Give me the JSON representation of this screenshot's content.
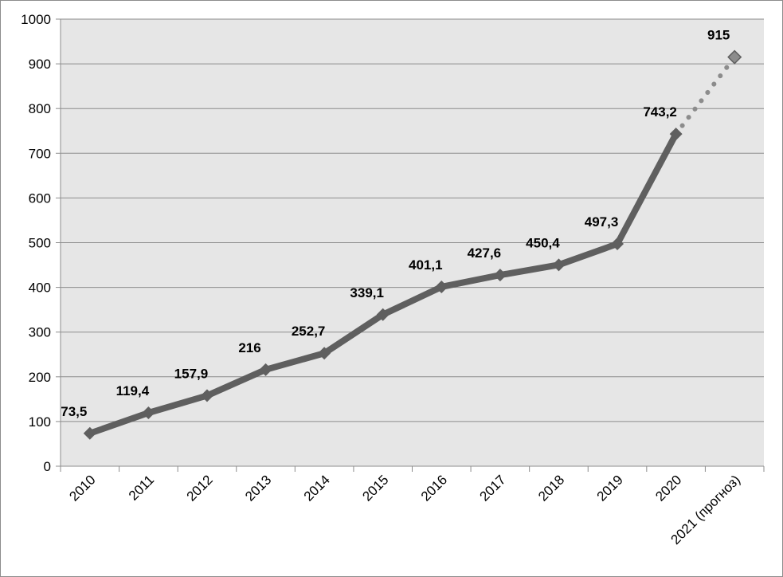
{
  "chart_data": {
    "type": "line",
    "title": "",
    "xlabel": "",
    "ylabel": "",
    "categories": [
      "2010",
      "2011",
      "2012",
      "2013",
      "2014",
      "2015",
      "2016",
      "2017",
      "2018",
      "2019",
      "2020",
      "2021 (прогноз)"
    ],
    "series": [
      {
        "values": [
          73.5,
          119.4,
          157.9,
          216,
          252.7,
          339.1,
          401.1,
          427.6,
          450.4,
          497.3,
          743.2,
          915
        ],
        "labels": [
          "73,5",
          "119,4",
          "157,9",
          "216",
          "252,7",
          "339,1",
          "401,1",
          "427,6",
          "450,4",
          "497,3",
          "743,2",
          "915"
        ],
        "forecast_from_index": 10
      }
    ],
    "ylim": [
      0,
      1000
    ],
    "yticks": [
      0,
      100,
      200,
      300,
      400,
      500,
      600,
      700,
      800,
      900,
      1000
    ],
    "grid": true,
    "legend": "none",
    "colors": {
      "line": "#5f5f5f",
      "forecast_marker": "#8c8c8c",
      "plot_background": "#e6e6e6",
      "gridline": "#8c8c8c"
    }
  }
}
